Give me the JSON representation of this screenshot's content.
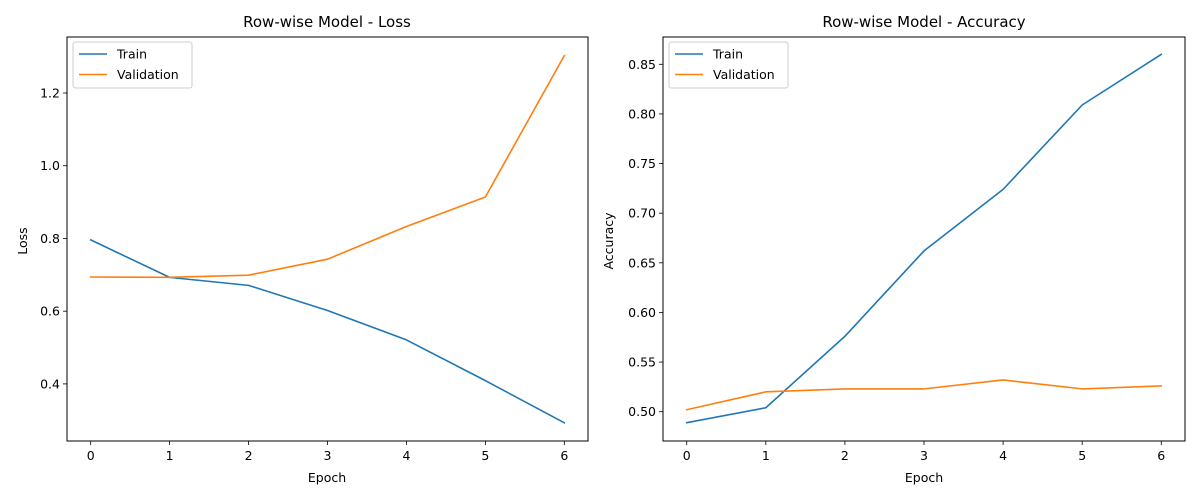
{
  "chart_data": [
    {
      "type": "line",
      "title": "Row-wise Model - Loss",
      "xlabel": "Epoch",
      "ylabel": "Loss",
      "x": [
        0,
        1,
        2,
        3,
        4,
        5,
        6
      ],
      "xticks": [
        "0",
        "1",
        "2",
        "3",
        "4",
        "5",
        "6"
      ],
      "xlim": [
        -0.3,
        6.3
      ],
      "yticks": [
        0.4,
        0.6,
        0.8,
        1.0,
        1.2
      ],
      "ytick_labels": [
        "0.4",
        "0.6",
        "0.8",
        "1.0",
        "1.2"
      ],
      "ylim": [
        0.243,
        1.354
      ],
      "grid": false,
      "legend": "top-left",
      "series": [
        {
          "name": "Train",
          "color": "#1f77b4",
          "values": [
            0.796,
            0.693,
            0.671,
            0.602,
            0.521,
            0.409,
            0.293
          ]
        },
        {
          "name": "Validation",
          "color": "#ff7f0e",
          "values": [
            0.694,
            0.693,
            0.699,
            0.743,
            0.833,
            0.914,
            1.303
          ]
        }
      ]
    },
    {
      "type": "line",
      "title": "Row-wise Model - Accuracy",
      "xlabel": "Epoch",
      "ylabel": "Accuracy",
      "x": [
        0,
        1,
        2,
        3,
        4,
        5,
        6
      ],
      "xticks": [
        "0",
        "1",
        "2",
        "3",
        "4",
        "5",
        "6"
      ],
      "xlim": [
        -0.3,
        6.3
      ],
      "yticks": [
        0.5,
        0.55,
        0.6,
        0.65,
        0.7,
        0.75,
        0.8,
        0.85
      ],
      "ytick_labels": [
        "0.50",
        "0.55",
        "0.60",
        "0.65",
        "0.70",
        "0.75",
        "0.80",
        "0.85"
      ],
      "ylim": [
        0.4705,
        0.8775
      ],
      "grid": false,
      "legend": "top-left",
      "series": [
        {
          "name": "Train",
          "color": "#1f77b4",
          "values": [
            0.489,
            0.504,
            0.576,
            0.662,
            0.724,
            0.809,
            0.86
          ]
        },
        {
          "name": "Validation",
          "color": "#ff7f0e",
          "values": [
            0.502,
            0.52,
            0.523,
            0.523,
            0.532,
            0.523,
            0.526
          ]
        }
      ]
    }
  ]
}
